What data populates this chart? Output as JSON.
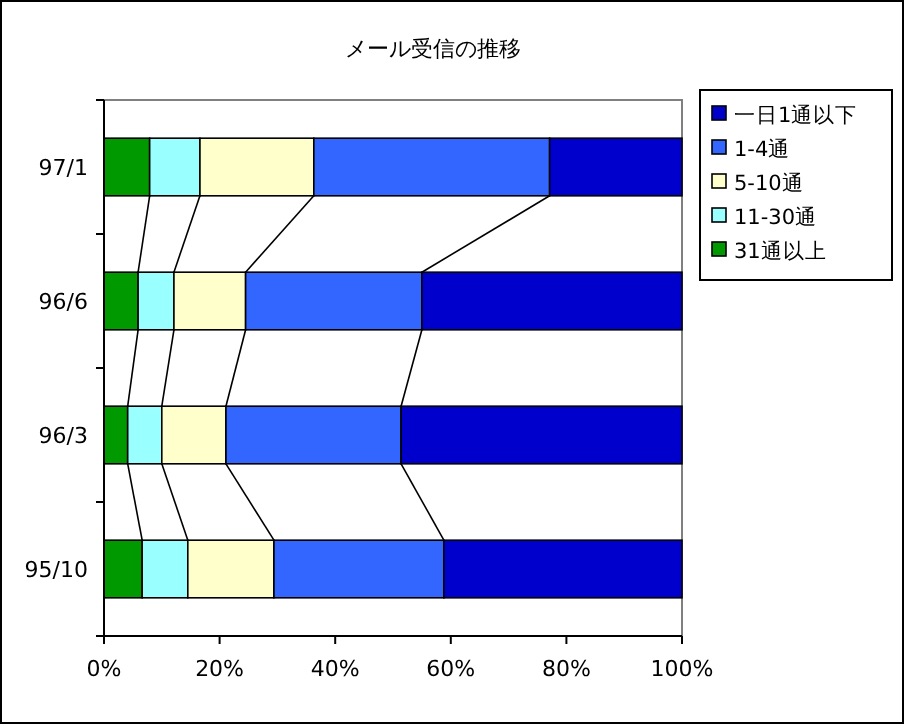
{
  "chart_data": {
    "type": "bar",
    "title": "メール受信の推移",
    "orientation": "horizontal",
    "stacked": true,
    "categories": [
      "97/1",
      "96/6",
      "96/3",
      "95/10"
    ],
    "series": [
      {
        "name": "31通以上",
        "color": "#009900",
        "values": [
          7.9,
          5.9,
          4.1,
          6.6
        ]
      },
      {
        "name": "11-30通",
        "color": "#99ffff",
        "values": [
          8.7,
          6.2,
          5.9,
          7.9
        ]
      },
      {
        "name": "5-10通",
        "color": "#ffffcc",
        "values": [
          19.7,
          12.4,
          11.1,
          14.9
        ]
      },
      {
        "name": "1-4通",
        "color": "#3366ff",
        "values": [
          40.8,
          30.5,
          30.3,
          29.4
        ]
      },
      {
        "name": "一日1通以下",
        "color": "#0000cc",
        "values": [
          22.9,
          45.0,
          48.6,
          41.2
        ]
      }
    ],
    "xlim": [
      0,
      100
    ],
    "xticks": [
      {
        "value": 0,
        "label": "0%"
      },
      {
        "value": 20,
        "label": "20%"
      },
      {
        "value": 40,
        "label": "40%"
      },
      {
        "value": 60,
        "label": "60%"
      },
      {
        "value": 80,
        "label": "80%"
      },
      {
        "value": 100,
        "label": "100%"
      }
    ],
    "grid": false,
    "legend": "top right"
  }
}
